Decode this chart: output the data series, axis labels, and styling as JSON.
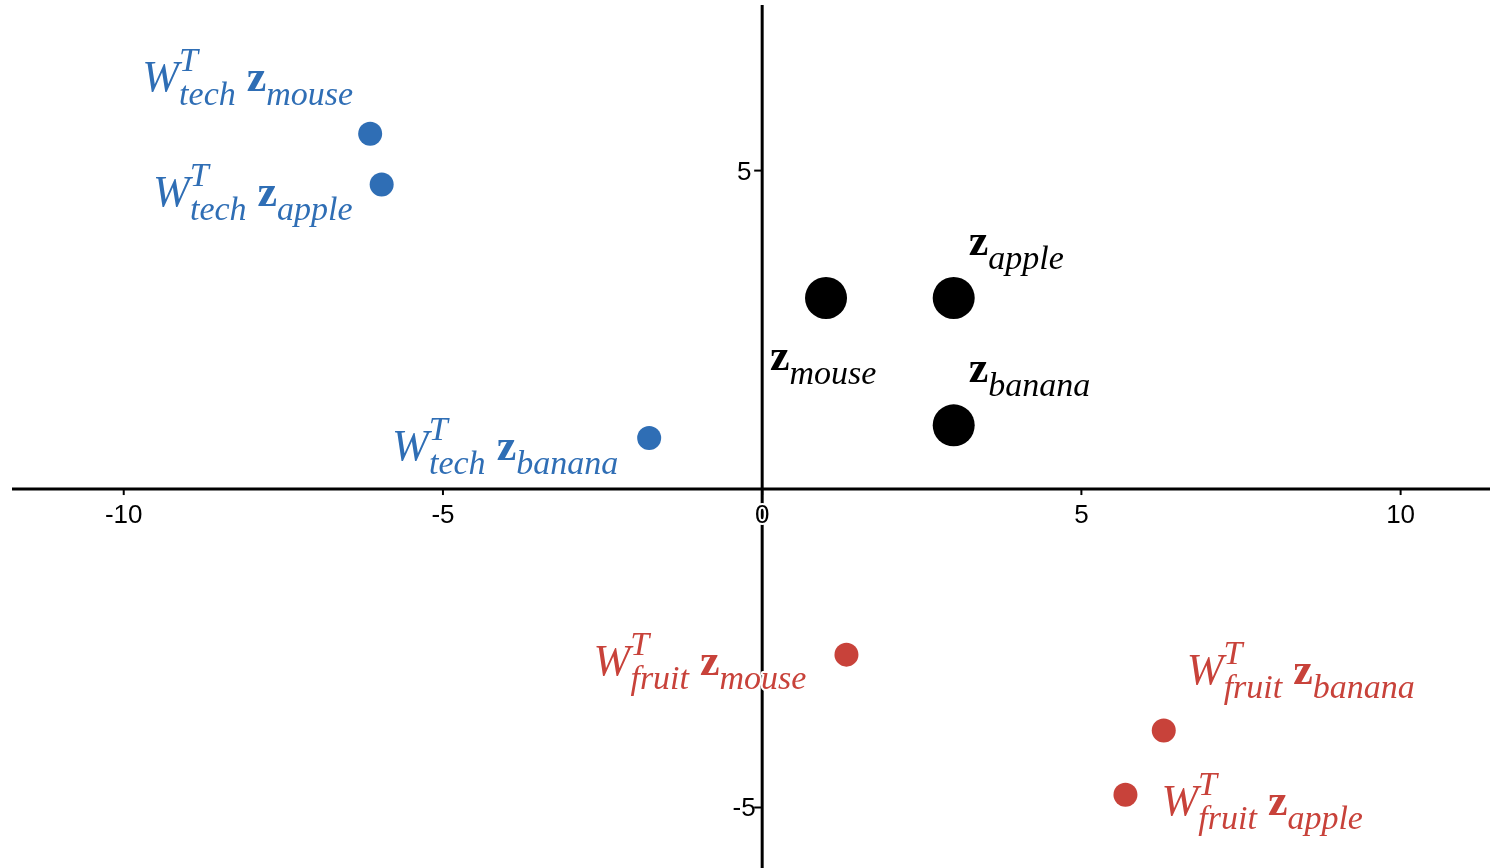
{
  "chart_data": {
    "type": "scatter",
    "xlim": [
      -11.75,
      11.4
    ],
    "ylim": [
      -5.95,
      7.6
    ],
    "xticks": [
      -10,
      -5,
      0,
      5,
      10
    ],
    "yticks": [
      -5,
      5
    ],
    "grid": false,
    "marker": "circle",
    "series": [
      {
        "color": "#2f6eb5",
        "x": [
          -6.14,
          -5.96,
          -1.77
        ],
        "values": [
          5.58,
          4.78,
          0.8
        ]
      },
      {
        "color": "#000000",
        "x": [
          3,
          1,
          3
        ],
        "values": [
          3,
          3,
          1
        ]
      },
      {
        "color": "#c8423a",
        "x": [
          1.32,
          6.29,
          5.69
        ],
        "values": [
          -2.6,
          -3.79,
          -4.8
        ]
      }
    ],
    "annotations": [
      {
        "text": "W$^{T}$$_{tech}$ z$_{mouse}$",
        "x": -6.14,
        "y": 5.58
      },
      {
        "text": "W$^{T}$$_{tech}$ z$_{apple}$",
        "x": -5.96,
        "y": 4.78
      },
      {
        "text": "W$^{T}$$_{tech}$ z$_{banana}$",
        "x": -1.77,
        "y": 0.8
      },
      {
        "text": "z$_{apple}$",
        "x": 3,
        "y": 3
      },
      {
        "text": "z$_{mouse}$",
        "x": 1,
        "y": 3
      },
      {
        "text": "z$_{banana}$",
        "x": 3,
        "y": 1
      },
      {
        "text": "W$^{T}$$_{fruit}$ z$_{mouse}$",
        "x": 1.32,
        "y": -2.6
      },
      {
        "text": "W$^{T}$$_{fruit}$ z$_{banana}$",
        "x": 6.29,
        "y": -3.79
      },
      {
        "text": "W$^{T}$$_{fruit}$ z$_{apple}$",
        "x": 5.69,
        "y": -4.8
      }
    ]
  }
}
